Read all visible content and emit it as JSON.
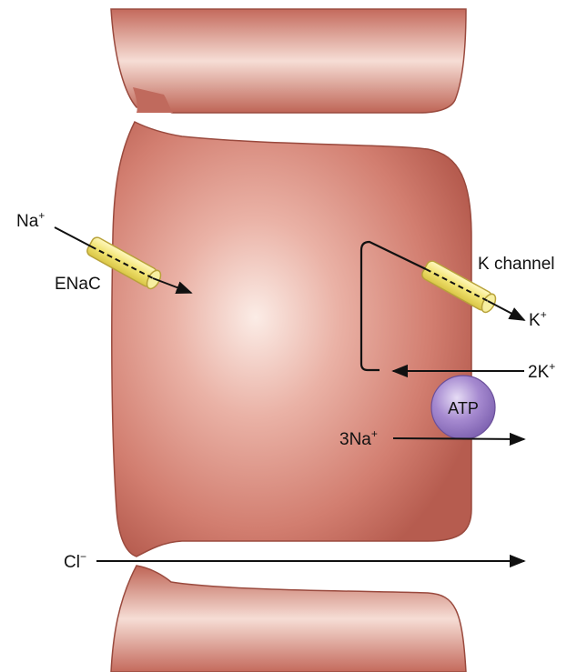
{
  "labels": {
    "na_ion": "Na",
    "na_charge": "+",
    "enac": "ENaC",
    "k_channel": "K channel",
    "k_ion": "K",
    "k_charge": "+",
    "two_k": "2K",
    "two_k_charge": "+",
    "atp": "ATP",
    "three_na": "3Na",
    "three_na_charge": "+",
    "cl_ion": "Cl",
    "cl_charge": "−"
  },
  "colors": {
    "cell_dark": "#b85f52",
    "cell_mid": "#d98a7c",
    "cell_light": "#f7e3dc",
    "cell_outline": "#8c3c32",
    "channel_fill": "#f3ea80",
    "channel_stroke": "#b8a23a",
    "atp_fill": "#9a7fc8",
    "arrow": "#111111"
  }
}
